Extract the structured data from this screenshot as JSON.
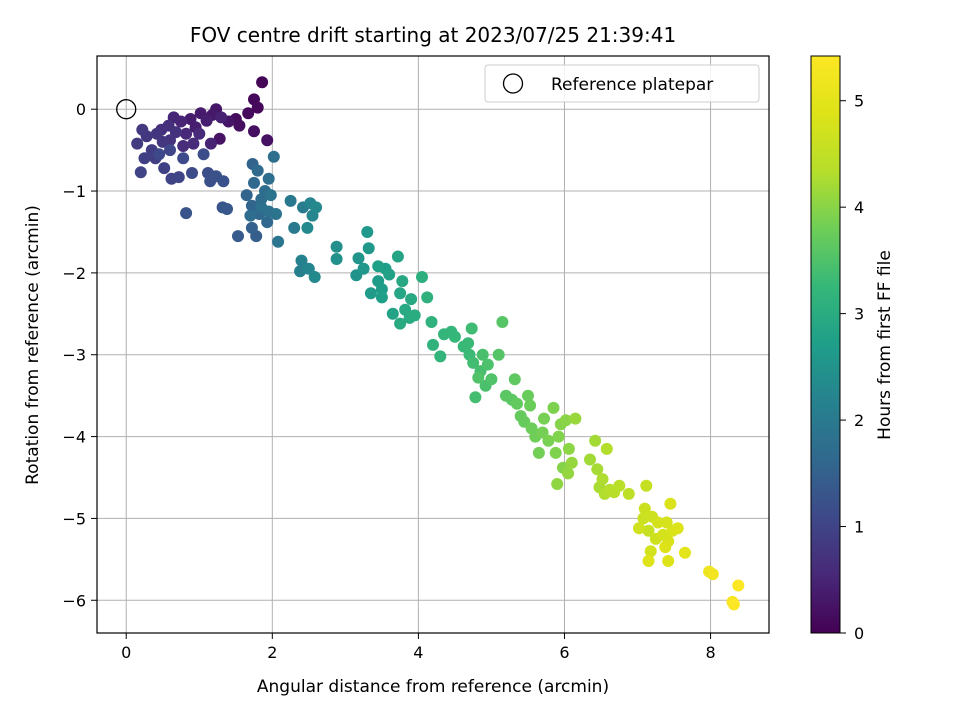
{
  "chart_data": {
    "type": "scatter",
    "title": "FOV centre drift starting at 2023/07/25 21:39:41",
    "xlabel": "Angular distance from reference (arcmin)",
    "ylabel": "Rotation from reference (arcmin)",
    "xlim": [
      -0.4,
      8.8
    ],
    "ylim": [
      -6.4,
      0.65
    ],
    "xticks": [
      0,
      2,
      4,
      6,
      8
    ],
    "xtick_labels": [
      "0",
      "2",
      "4",
      "6",
      "8"
    ],
    "yticks": [
      0,
      -1,
      -2,
      -3,
      -4,
      -5,
      -6
    ],
    "ytick_labels": [
      "0",
      "−1",
      "−2",
      "−3",
      "−4",
      "−5",
      "−6"
    ],
    "grid": true,
    "colormap": "viridis",
    "colorbar": {
      "label": "Hours from first FF file",
      "range": [
        0,
        5.42
      ],
      "ticks": [
        0,
        1,
        2,
        3,
        4,
        5
      ],
      "tick_labels": [
        "0",
        "1",
        "2",
        "3",
        "4",
        "5"
      ]
    },
    "legend": {
      "position": "top-right",
      "entries": [
        {
          "label": "Reference platepar",
          "marker": "open-circle"
        }
      ]
    },
    "reference_point": {
      "x": 0,
      "y": 0
    },
    "points": [
      [
        1.86,
        0.33,
        0.05
      ],
      [
        1.75,
        0.12,
        0.08
      ],
      [
        1.8,
        0.02,
        0.1
      ],
      [
        1.67,
        -0.05,
        0.12
      ],
      [
        1.5,
        -0.12,
        0.15
      ],
      [
        1.55,
        -0.2,
        0.18
      ],
      [
        1.75,
        -0.27,
        0.2
      ],
      [
        1.93,
        -0.38,
        0.22
      ],
      [
        1.28,
        -0.36,
        0.25
      ],
      [
        1.4,
        -0.15,
        0.28
      ],
      [
        1.23,
        0.0,
        0.3
      ],
      [
        1.18,
        -0.07,
        0.33
      ],
      [
        1.02,
        -0.05,
        0.36
      ],
      [
        0.88,
        -0.12,
        0.38
      ],
      [
        0.95,
        -0.22,
        0.4
      ],
      [
        1.1,
        -0.14,
        0.42
      ],
      [
        1.3,
        -0.1,
        0.45
      ],
      [
        1.16,
        -0.42,
        0.48
      ],
      [
        0.75,
        -0.15,
        0.5
      ],
      [
        0.65,
        -0.1,
        0.52
      ],
      [
        0.82,
        -0.3,
        0.55
      ],
      [
        1.0,
        -0.3,
        0.58
      ],
      [
        0.92,
        -0.42,
        0.6
      ],
      [
        0.78,
        -0.45,
        0.62
      ],
      [
        0.58,
        -0.2,
        0.65
      ],
      [
        0.48,
        -0.25,
        0.68
      ],
      [
        0.68,
        -0.28,
        0.7
      ],
      [
        0.6,
        -0.38,
        0.72
      ],
      [
        0.42,
        -0.3,
        0.75
      ],
      [
        0.5,
        -0.4,
        0.78
      ],
      [
        0.28,
        -0.33,
        0.8
      ],
      [
        0.22,
        -0.25,
        0.82
      ],
      [
        0.15,
        -0.42,
        0.85
      ],
      [
        0.35,
        -0.5,
        0.88
      ],
      [
        0.4,
        -0.6,
        0.9
      ],
      [
        0.25,
        -0.6,
        0.92
      ],
      [
        0.52,
        -0.72,
        0.95
      ],
      [
        0.2,
        -0.77,
        0.98
      ],
      [
        0.62,
        -0.85,
        1.0
      ],
      [
        0.72,
        -0.83,
        1.02
      ],
      [
        0.6,
        -0.5,
        1.05
      ],
      [
        0.45,
        -0.55,
        1.08
      ],
      [
        0.78,
        -0.6,
        1.1
      ],
      [
        0.9,
        -0.78,
        1.12
      ],
      [
        1.06,
        -0.55,
        1.15
      ],
      [
        1.12,
        -0.78,
        1.18
      ],
      [
        1.15,
        -0.88,
        1.2
      ],
      [
        1.23,
        -0.82,
        1.22
      ],
      [
        1.33,
        -0.88,
        1.25
      ],
      [
        0.82,
        -1.27,
        1.28
      ],
      [
        1.32,
        -1.2,
        1.32
      ],
      [
        1.38,
        -1.22,
        1.35
      ],
      [
        1.53,
        -1.55,
        1.4
      ],
      [
        1.78,
        -1.55,
        1.45
      ],
      [
        1.72,
        -1.45,
        1.5
      ],
      [
        1.73,
        -0.67,
        1.55
      ],
      [
        1.65,
        -1.05,
        1.55
      ],
      [
        1.72,
        -1.18,
        1.58
      ],
      [
        1.82,
        -1.28,
        1.6
      ],
      [
        1.93,
        -1.38,
        1.62
      ],
      [
        1.75,
        -0.9,
        1.65
      ],
      [
        1.8,
        -0.75,
        1.68
      ],
      [
        1.85,
        -1.1,
        1.7
      ],
      [
        1.7,
        -1.3,
        1.72
      ],
      [
        1.9,
        -1.0,
        1.74
      ],
      [
        1.95,
        -0.85,
        1.76
      ],
      [
        2.02,
        -0.58,
        1.78
      ],
      [
        1.85,
        -1.2,
        1.8
      ],
      [
        1.95,
        -1.25,
        1.82
      ],
      [
        2.05,
        -1.28,
        1.85
      ],
      [
        1.98,
        -1.05,
        1.88
      ],
      [
        2.08,
        -1.62,
        1.9
      ],
      [
        2.25,
        -1.12,
        1.95
      ],
      [
        2.3,
        -1.45,
        2.0
      ],
      [
        2.42,
        -1.2,
        2.05
      ],
      [
        2.38,
        -1.98,
        2.1
      ],
      [
        2.4,
        -1.85,
        2.15
      ],
      [
        2.52,
        -1.15,
        2.2
      ],
      [
        2.5,
        -1.95,
        2.22
      ],
      [
        2.55,
        -1.3,
        2.25
      ],
      [
        2.6,
        -1.2,
        2.28
      ],
      [
        2.58,
        -2.05,
        2.3
      ],
      [
        2.48,
        -1.45,
        2.3
      ],
      [
        2.88,
        -1.68,
        2.4
      ],
      [
        2.88,
        -1.83,
        2.45
      ],
      [
        3.15,
        -2.03,
        2.5
      ],
      [
        3.18,
        -1.82,
        2.52
      ],
      [
        3.25,
        -1.95,
        2.55
      ],
      [
        3.3,
        -1.5,
        2.6
      ],
      [
        3.32,
        -1.7,
        2.62
      ],
      [
        3.35,
        -2.25,
        2.65
      ],
      [
        3.45,
        -2.1,
        2.68
      ],
      [
        3.5,
        -2.2,
        2.7
      ],
      [
        3.55,
        -1.95,
        2.72
      ],
      [
        3.5,
        -2.3,
        2.74
      ],
      [
        3.45,
        -1.92,
        2.76
      ],
      [
        3.6,
        -2.02,
        2.78
      ],
      [
        3.65,
        -2.5,
        2.8
      ],
      [
        3.72,
        -1.8,
        2.85
      ],
      [
        3.75,
        -2.25,
        2.88
      ],
      [
        3.78,
        -2.1,
        2.9
      ],
      [
        3.82,
        -2.45,
        2.92
      ],
      [
        3.9,
        -2.32,
        2.94
      ],
      [
        3.88,
        -2.55,
        2.96
      ],
      [
        3.75,
        -2.62,
        2.98
      ],
      [
        3.95,
        -2.52,
        3.0
      ],
      [
        4.05,
        -2.05,
        3.05
      ],
      [
        4.12,
        -2.3,
        3.1
      ],
      [
        4.18,
        -2.6,
        3.12
      ],
      [
        4.2,
        -2.88,
        3.15
      ],
      [
        4.3,
        -3.02,
        3.18
      ],
      [
        4.35,
        -2.75,
        3.2
      ],
      [
        4.45,
        -2.72,
        3.22
      ],
      [
        4.5,
        -2.78,
        3.25
      ],
      [
        4.62,
        -2.9,
        3.28
      ],
      [
        4.68,
        -2.86,
        3.3
      ],
      [
        4.7,
        -3.0,
        3.32
      ],
      [
        4.73,
        -2.68,
        3.35
      ],
      [
        4.75,
        -3.1,
        3.38
      ],
      [
        4.78,
        -3.52,
        3.4
      ],
      [
        4.85,
        -3.2,
        3.42
      ],
      [
        4.88,
        -3.0,
        3.44
      ],
      [
        4.92,
        -3.38,
        3.46
      ],
      [
        4.95,
        -3.12,
        3.48
      ],
      [
        5.0,
        -3.3,
        3.5
      ],
      [
        4.82,
        -3.28,
        3.52
      ],
      [
        5.1,
        -3.0,
        3.55
      ],
      [
        5.15,
        -2.6,
        3.58
      ],
      [
        5.2,
        -3.5,
        3.6
      ],
      [
        5.28,
        -3.55,
        3.62
      ],
      [
        5.32,
        -3.3,
        3.65
      ],
      [
        5.35,
        -3.6,
        3.68
      ],
      [
        5.4,
        -3.75,
        3.7
      ],
      [
        5.45,
        -3.82,
        3.72
      ],
      [
        5.5,
        -3.5,
        3.74
      ],
      [
        5.53,
        -3.62,
        3.76
      ],
      [
        5.55,
        -3.9,
        3.78
      ],
      [
        5.6,
        -4.0,
        3.8
      ],
      [
        5.65,
        -4.2,
        3.82
      ],
      [
        5.7,
        -3.95,
        3.84
      ],
      [
        5.72,
        -3.78,
        3.86
      ],
      [
        5.78,
        -4.05,
        3.88
      ],
      [
        5.85,
        -3.65,
        3.9
      ],
      [
        5.88,
        -4.2,
        3.92
      ],
      [
        5.92,
        -4.0,
        3.94
      ],
      [
        5.95,
        -3.85,
        3.96
      ],
      [
        5.98,
        -4.38,
        3.98
      ],
      [
        6.02,
        -3.8,
        4.0
      ],
      [
        6.06,
        -4.15,
        4.02
      ],
      [
        5.9,
        -4.58,
        4.05
      ],
      [
        6.05,
        -4.45,
        4.08
      ],
      [
        6.1,
        -4.32,
        4.1
      ],
      [
        6.15,
        -3.78,
        4.12
      ],
      [
        6.35,
        -4.28,
        4.18
      ],
      [
        6.42,
        -4.05,
        4.2
      ],
      [
        6.45,
        -4.4,
        4.22
      ],
      [
        6.48,
        -4.62,
        4.25
      ],
      [
        6.52,
        -4.52,
        4.28
      ],
      [
        6.55,
        -4.7,
        4.3
      ],
      [
        6.58,
        -4.15,
        4.32
      ],
      [
        6.62,
        -4.65,
        4.35
      ],
      [
        6.68,
        -4.68,
        4.38
      ],
      [
        6.75,
        -4.6,
        4.4
      ],
      [
        6.88,
        -4.7,
        4.45
      ],
      [
        7.12,
        -4.6,
        4.55
      ],
      [
        7.15,
        -5.15,
        4.6
      ],
      [
        7.08,
        -5.0,
        4.62
      ],
      [
        7.1,
        -4.88,
        4.64
      ],
      [
        7.2,
        -4.98,
        4.66
      ],
      [
        7.25,
        -5.25,
        4.68
      ],
      [
        7.02,
        -5.12,
        4.7
      ],
      [
        7.18,
        -5.4,
        4.72
      ],
      [
        7.28,
        -5.05,
        4.74
      ],
      [
        7.35,
        -5.2,
        4.76
      ],
      [
        7.4,
        -5.05,
        4.78
      ],
      [
        7.42,
        -5.28,
        4.8
      ],
      [
        7.45,
        -4.82,
        4.82
      ],
      [
        7.48,
        -5.15,
        4.84
      ],
      [
        7.55,
        -5.12,
        4.86
      ],
      [
        7.38,
        -5.35,
        4.88
      ],
      [
        7.42,
        -5.52,
        4.9
      ],
      [
        7.15,
        -5.52,
        4.92
      ],
      [
        7.65,
        -5.42,
        5.0
      ],
      [
        7.98,
        -5.65,
        5.15
      ],
      [
        8.03,
        -5.68,
        5.2
      ],
      [
        8.3,
        -6.02,
        5.32
      ],
      [
        8.38,
        -5.82,
        5.38
      ],
      [
        8.32,
        -6.05,
        5.42
      ]
    ]
  }
}
